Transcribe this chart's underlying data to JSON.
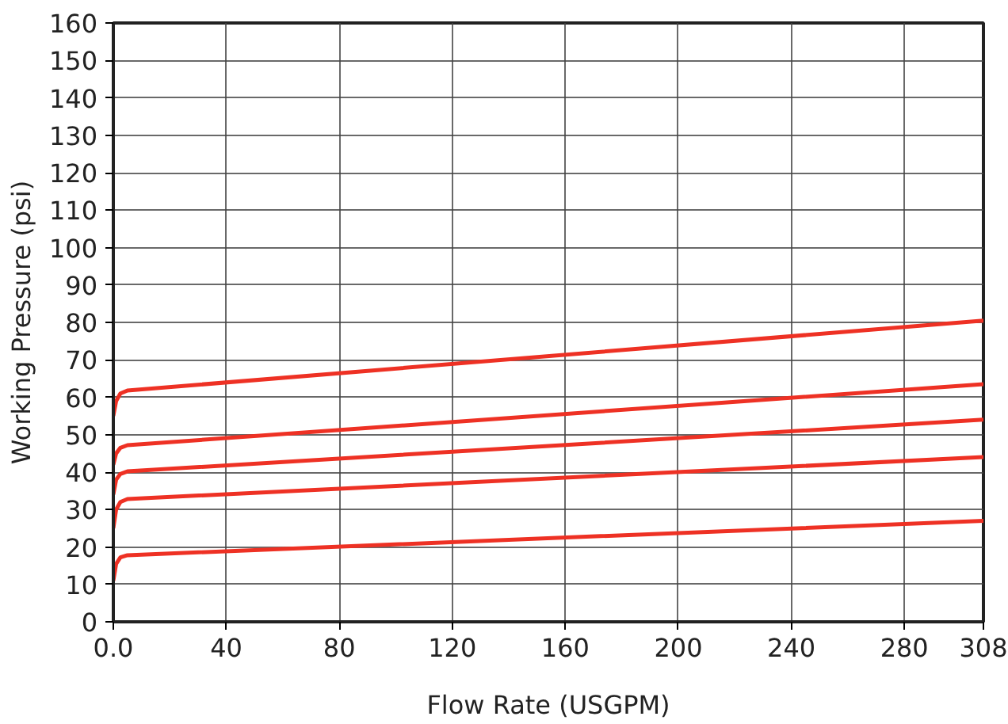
{
  "chart_data": {
    "type": "line",
    "xlabel": "Flow Rate (USGPM)",
    "ylabel": "Working Pressure (psi)",
    "xlim": [
      0,
      308
    ],
    "ylim": [
      0,
      160
    ],
    "xticks": [
      {
        "value": 0,
        "label": "0.0"
      },
      40,
      80,
      120,
      160,
      200,
      240,
      280,
      308
    ],
    "yticks": [
      0,
      10,
      20,
      30,
      40,
      50,
      60,
      70,
      80,
      90,
      100,
      110,
      120,
      130,
      140,
      150,
      160
    ],
    "grid": true,
    "marker": "none",
    "line_style": "solid",
    "series": [
      {
        "color": "#ee3124",
        "x": [
          0,
          1,
          2.5,
          5,
          308
        ],
        "values": [
          55,
          59,
          61,
          61.8,
          80.5
        ]
      },
      {
        "color": "#ee3124",
        "x": [
          0,
          1,
          2.5,
          5,
          308
        ],
        "values": [
          42,
          45,
          46.5,
          47.2,
          63.5
        ]
      },
      {
        "color": "#ee3124",
        "x": [
          0,
          1,
          2.5,
          5,
          308
        ],
        "values": [
          34,
          38,
          39.5,
          40.2,
          54
        ]
      },
      {
        "color": "#ee3124",
        "x": [
          0,
          1,
          2.5,
          5,
          308
        ],
        "values": [
          25,
          30,
          32,
          32.8,
          44
        ]
      },
      {
        "color": "#ee3124",
        "x": [
          0,
          1,
          2.5,
          5,
          308
        ],
        "values": [
          11,
          15.5,
          17.2,
          17.8,
          27
        ]
      }
    ]
  }
}
